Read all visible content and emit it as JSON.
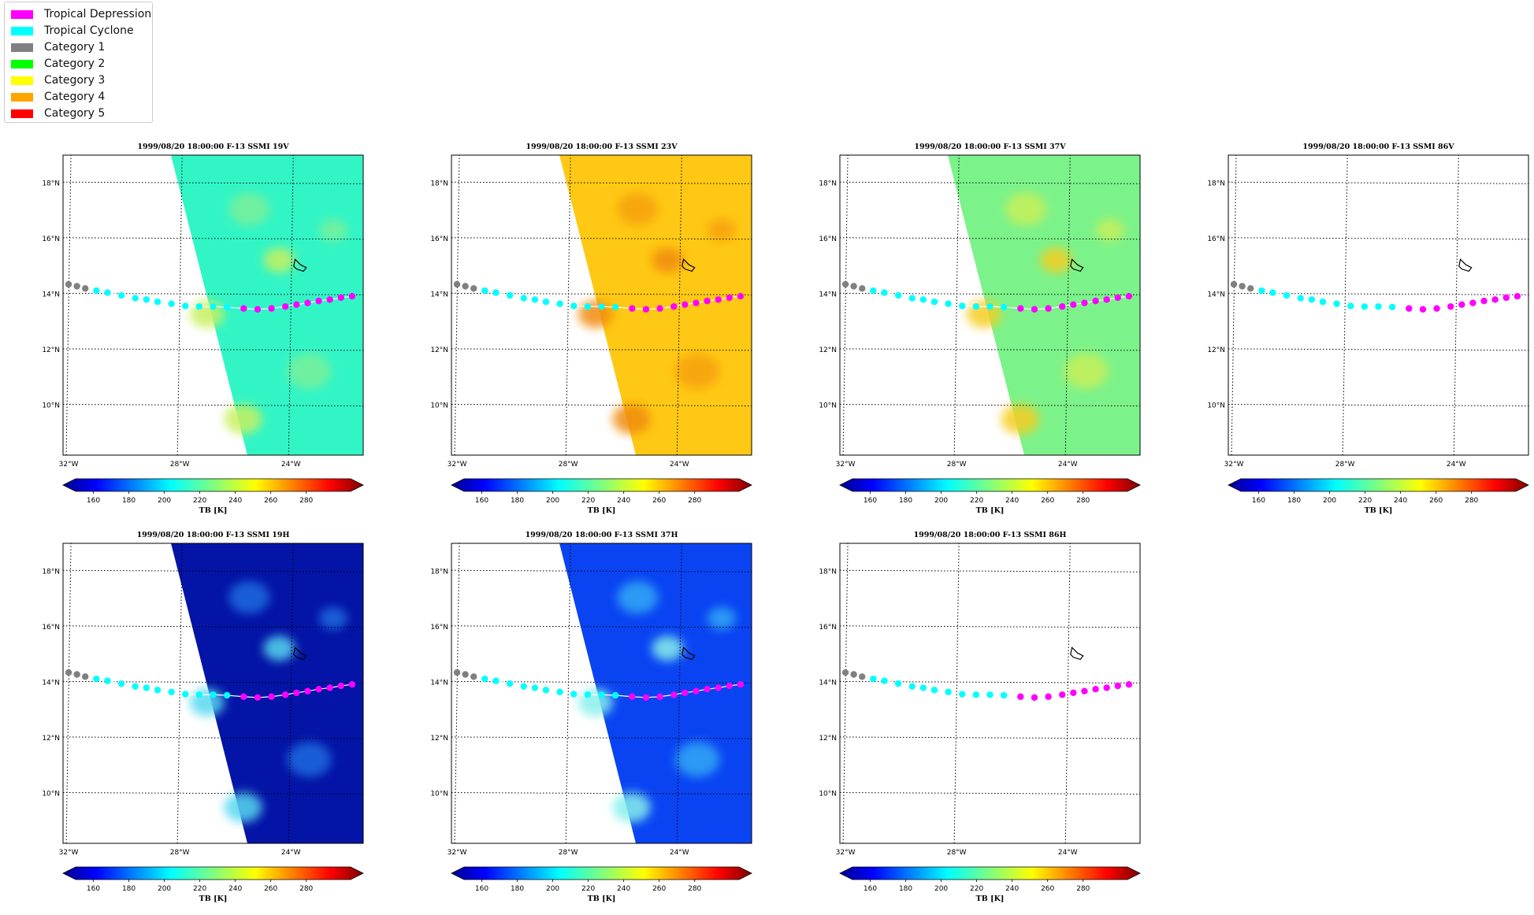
{
  "legend": {
    "items": [
      {
        "label": "Tropical Depression",
        "color": "#ff00ff"
      },
      {
        "label": "Tropical Cyclone",
        "color": "#00ffff"
      },
      {
        "label": "Category 1",
        "color": "#808080"
      },
      {
        "label": "Category 2",
        "color": "#00ff00"
      },
      {
        "label": "Category 3",
        "color": "#ffff00"
      },
      {
        "label": "Category 4",
        "color": "#ffa500"
      },
      {
        "label": "Category 5",
        "color": "#ff0000"
      }
    ]
  },
  "map": {
    "lon_ticks": [
      "32°W",
      "28°W",
      "24°W"
    ],
    "lat_ticks": [
      "18°N",
      "16°N",
      "14°N",
      "12°N",
      "10°N"
    ],
    "lon_values": [
      -32,
      -28,
      -24
    ],
    "lat_values": [
      18,
      16,
      14,
      12,
      10
    ],
    "lon_range": [
      -32.2,
      -21.4
    ],
    "lat_range": [
      8.2,
      19.0
    ]
  },
  "colorbar": {
    "ticks": [
      "160",
      "180",
      "200",
      "220",
      "240",
      "260",
      "280"
    ],
    "tick_values": [
      160,
      180,
      200,
      220,
      240,
      260,
      280
    ],
    "range": [
      150,
      305
    ],
    "label": "TB [K]",
    "colormap": "jet",
    "extend": "both"
  },
  "panels": [
    {
      "title": "1999/08/20 18:00:00  F-13 SSMI 19V",
      "swath": true,
      "fill": "#32f5c6",
      "blobs": [
        "#7af09a",
        "#c8f060"
      ]
    },
    {
      "title": "1999/08/20 18:00:00  F-13 SSMI 23V",
      "swath": true,
      "fill": "#ffc814",
      "blobs": [
        "#f6a20a",
        "#f08c0a"
      ]
    },
    {
      "title": "1999/08/20 18:00:00  F-13 SSMI 37V",
      "swath": true,
      "fill": "#7cf28a",
      "blobs": [
        "#c8f05a",
        "#f5cd20"
      ]
    },
    {
      "title": "1999/08/20 18:00:00  F-13 SSMI 86V",
      "swath": false,
      "fill": "",
      "blobs": []
    },
    {
      "title": "1999/08/20 18:00:00  F-13 SSMI 19H",
      "swath": true,
      "fill": "#0414a6",
      "blobs": [
        "#1f6be0",
        "#58d8f0"
      ]
    },
    {
      "title": "1999/08/20 18:00:00  F-13 SSMI 37H",
      "swath": true,
      "fill": "#0a44f2",
      "blobs": [
        "#30a8f5",
        "#88f0ea"
      ]
    },
    {
      "title": "1999/08/20 18:00:00  F-13 SSMI 86H",
      "swath": false,
      "fill": "",
      "blobs": []
    }
  ],
  "storm_track": {
    "points": [
      {
        "lon": -32.0,
        "lat": 14.35,
        "cat": "Category 1"
      },
      {
        "lon": -31.7,
        "lat": 14.28,
        "cat": "Category 1"
      },
      {
        "lon": -31.4,
        "lat": 14.2,
        "cat": "Category 1"
      },
      {
        "lon": -31.0,
        "lat": 14.12,
        "cat": "Tropical Cyclone"
      },
      {
        "lon": -30.6,
        "lat": 14.05,
        "cat": "Tropical Cyclone"
      },
      {
        "lon": -30.1,
        "lat": 13.95,
        "cat": "Tropical Cyclone"
      },
      {
        "lon": -29.6,
        "lat": 13.85,
        "cat": "Tropical Cyclone"
      },
      {
        "lon": -29.2,
        "lat": 13.8,
        "cat": "Tropical Cyclone"
      },
      {
        "lon": -28.8,
        "lat": 13.72,
        "cat": "Tropical Cyclone"
      },
      {
        "lon": -28.3,
        "lat": 13.65,
        "cat": "Tropical Cyclone"
      },
      {
        "lon": -27.8,
        "lat": 13.57,
        "cat": "Tropical Cyclone"
      },
      {
        "lon": -27.3,
        "lat": 13.55,
        "cat": "Tropical Cyclone"
      },
      {
        "lon": -26.8,
        "lat": 13.55,
        "cat": "Tropical Cyclone"
      },
      {
        "lon": -26.3,
        "lat": 13.53,
        "cat": "Tropical Cyclone"
      },
      {
        "lon": -25.7,
        "lat": 13.48,
        "cat": "Tropical Depression"
      },
      {
        "lon": -25.2,
        "lat": 13.45,
        "cat": "Tropical Depression"
      },
      {
        "lon": -24.7,
        "lat": 13.48,
        "cat": "Tropical Depression"
      },
      {
        "lon": -24.2,
        "lat": 13.55,
        "cat": "Tropical Depression"
      },
      {
        "lon": -23.8,
        "lat": 13.62,
        "cat": "Tropical Depression"
      },
      {
        "lon": -23.4,
        "lat": 13.68,
        "cat": "Tropical Depression"
      },
      {
        "lon": -23.0,
        "lat": 13.75,
        "cat": "Tropical Depression"
      },
      {
        "lon": -22.6,
        "lat": 13.8,
        "cat": "Tropical Depression"
      },
      {
        "lon": -22.2,
        "lat": 13.87,
        "cat": "Tropical Depression"
      },
      {
        "lon": -21.8,
        "lat": 13.92,
        "cat": "Tropical Depression"
      }
    ]
  },
  "island": {
    "outline": [
      [
        -23.85,
        15.25
      ],
      [
        -23.65,
        15.05
      ],
      [
        -23.45,
        14.95
      ],
      [
        -23.55,
        14.82
      ],
      [
        -23.8,
        14.9
      ],
      [
        -23.9,
        15.0
      ]
    ]
  }
}
